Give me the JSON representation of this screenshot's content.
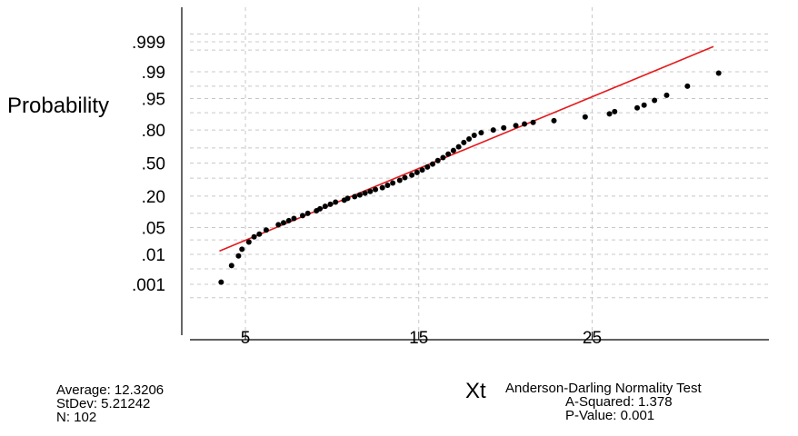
{
  "chart_data": {
    "type": "scatter",
    "title": "",
    "xlabel": "Xt",
    "ylabel": "Probability",
    "xlim": [
      1.8,
      35.2
    ],
    "x_ticks": [
      5,
      15,
      25
    ],
    "y_ticks": [
      ".999",
      ".99",
      ".95",
      ".80",
      ".50",
      ".20",
      ".05",
      ".01",
      ".001"
    ],
    "grid": true,
    "y_scale": "normal-probability",
    "fit_line": {
      "color": "#e41a1c",
      "x_start": 3.5,
      "x_end": 32.0,
      "p_start": 0.0125,
      "p_end": 0.9985
    },
    "series": [
      {
        "marker_color": "#000000",
        "points": [
          [
            3.6,
            0.0012
          ],
          [
            4.2,
            0.0045
          ],
          [
            4.6,
            0.009
          ],
          [
            4.8,
            0.014
          ],
          [
            5.2,
            0.022
          ],
          [
            5.5,
            0.03
          ],
          [
            5.8,
            0.035
          ],
          [
            6.2,
            0.044
          ],
          [
            6.9,
            0.058
          ],
          [
            7.2,
            0.064
          ],
          [
            7.5,
            0.071
          ],
          [
            7.8,
            0.079
          ],
          [
            8.3,
            0.09
          ],
          [
            8.6,
            0.1
          ],
          [
            9.1,
            0.112
          ],
          [
            9.3,
            0.122
          ],
          [
            9.6,
            0.135
          ],
          [
            9.9,
            0.147
          ],
          [
            10.2,
            0.16
          ],
          [
            10.7,
            0.172
          ],
          [
            10.9,
            0.184
          ],
          [
            11.3,
            0.196
          ],
          [
            11.6,
            0.208
          ],
          [
            11.9,
            0.222
          ],
          [
            12.2,
            0.235
          ],
          [
            12.5,
            0.25
          ],
          [
            12.9,
            0.265
          ],
          [
            13.2,
            0.285
          ],
          [
            13.5,
            0.305
          ],
          [
            13.9,
            0.33
          ],
          [
            14.2,
            0.355
          ],
          [
            14.6,
            0.38
          ],
          [
            14.9,
            0.405
          ],
          [
            15.2,
            0.43
          ],
          [
            15.5,
            0.46
          ],
          [
            15.8,
            0.49
          ],
          [
            16.1,
            0.525
          ],
          [
            16.4,
            0.555
          ],
          [
            16.7,
            0.59
          ],
          [
            17.0,
            0.625
          ],
          [
            17.3,
            0.66
          ],
          [
            17.6,
            0.7
          ],
          [
            17.9,
            0.73
          ],
          [
            18.2,
            0.76
          ],
          [
            18.6,
            0.78
          ],
          [
            19.3,
            0.8
          ],
          [
            19.9,
            0.815
          ],
          [
            20.6,
            0.83
          ],
          [
            21.1,
            0.84
          ],
          [
            21.6,
            0.85
          ],
          [
            22.8,
            0.86
          ],
          [
            24.6,
            0.88
          ],
          [
            26.0,
            0.895
          ],
          [
            26.3,
            0.905
          ],
          [
            27.6,
            0.92
          ],
          [
            28.0,
            0.93
          ],
          [
            28.6,
            0.945
          ],
          [
            29.3,
            0.958
          ],
          [
            30.5,
            0.975
          ],
          [
            32.3,
            0.989
          ]
        ]
      }
    ]
  },
  "stats": {
    "average": "Average: 12.3206",
    "stdev": "StDev: 5.21242",
    "n": "N: 102"
  },
  "test": {
    "title": "Anderson-Darling Normality Test",
    "a_squared": "A-Squared: 1.378",
    "p_value": "P-Value:   0.001"
  }
}
